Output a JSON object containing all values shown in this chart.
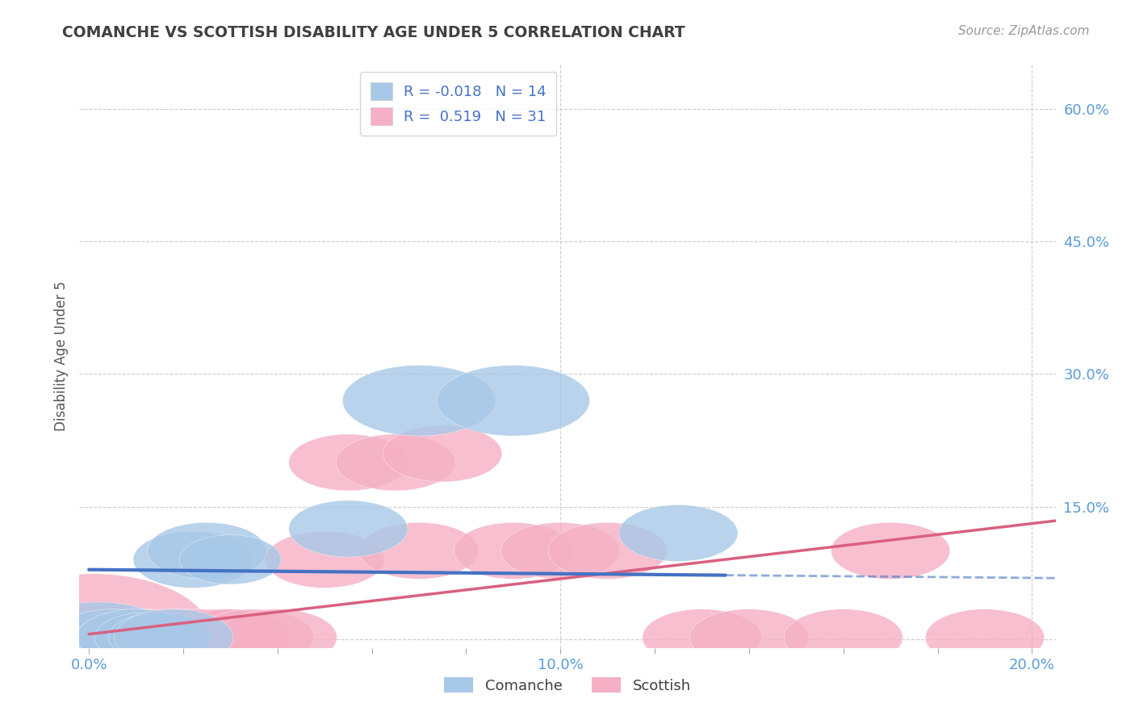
{
  "title": "COMANCHE VS SCOTTISH DISABILITY AGE UNDER 5 CORRELATION CHART",
  "source": "Source: ZipAtlas.com",
  "ylabel": "Disability Age Under 5",
  "xlim": [
    -0.002,
    0.205
  ],
  "ylim": [
    -0.01,
    0.65
  ],
  "ytick_values": [
    0.0,
    0.15,
    0.3,
    0.45,
    0.6
  ],
  "ytick_labels": [
    "",
    "15.0%",
    "30.0%",
    "45.0%",
    "60.0%"
  ],
  "xtick_values": [
    0.0,
    0.02,
    0.04,
    0.06,
    0.08,
    0.1,
    0.12,
    0.14,
    0.16,
    0.18,
    0.2
  ],
  "xtick_labels": [
    "0.0%",
    "",
    "",
    "",
    "",
    "10.0%",
    "",
    "",
    "",
    "",
    "20.0%"
  ],
  "comanche_R": -0.018,
  "comanche_N": 14,
  "scottish_R": 0.519,
  "scottish_N": 31,
  "comanche_color": "#a8c8e8",
  "scottish_color": "#f5b0c5",
  "comanche_line_color": "#4472c4",
  "scottish_line_color": "#d96080",
  "axis_color": "#5b9bd5",
  "grid_color": "#cccccc",
  "background_color": "#ffffff",
  "comanche_x": [
    0.002,
    0.005,
    0.008,
    0.01,
    0.012,
    0.015,
    0.018,
    0.022,
    0.025,
    0.03,
    0.055,
    0.07,
    0.09,
    0.125
  ],
  "comanche_y": [
    0.002,
    0.002,
    0.002,
    0.002,
    0.002,
    0.002,
    0.002,
    0.09,
    0.1,
    0.09,
    0.125,
    0.27,
    0.27,
    0.12
  ],
  "comanche_sizes_w": [
    18,
    14,
    12,
    14,
    12,
    12,
    14,
    14,
    14,
    12,
    14,
    18,
    18,
    14
  ],
  "comanche_sizes_h": [
    10,
    8,
    7,
    8,
    7,
    7,
    8,
    8,
    8,
    7,
    8,
    10,
    10,
    8
  ],
  "scottish_x": [
    0.001,
    0.003,
    0.005,
    0.006,
    0.008,
    0.009,
    0.01,
    0.012,
    0.013,
    0.015,
    0.018,
    0.02,
    0.022,
    0.025,
    0.028,
    0.03,
    0.035,
    0.04,
    0.05,
    0.055,
    0.065,
    0.07,
    0.075,
    0.09,
    0.1,
    0.11,
    0.13,
    0.14,
    0.16,
    0.17,
    0.19
  ],
  "scottish_y": [
    0.002,
    0.002,
    0.002,
    0.002,
    0.002,
    0.002,
    0.002,
    0.002,
    0.002,
    0.002,
    0.002,
    0.002,
    0.002,
    0.002,
    0.002,
    0.002,
    0.002,
    0.002,
    0.09,
    0.2,
    0.2,
    0.1,
    0.21,
    0.1,
    0.1,
    0.1,
    0.002,
    0.002,
    0.002,
    0.1,
    0.002
  ],
  "scottish_sizes_w": [
    28,
    16,
    14,
    14,
    14,
    14,
    14,
    14,
    14,
    14,
    14,
    14,
    14,
    14,
    14,
    14,
    14,
    14,
    14,
    14,
    14,
    14,
    14,
    14,
    14,
    14,
    14,
    14,
    14,
    14,
    14
  ],
  "scottish_sizes_h": [
    18,
    9,
    8,
    8,
    8,
    8,
    8,
    8,
    8,
    8,
    8,
    8,
    8,
    8,
    8,
    8,
    8,
    8,
    8,
    8,
    8,
    8,
    8,
    8,
    8,
    8,
    8,
    8,
    8,
    8,
    8
  ],
  "comanche_line_x0": 0.0,
  "comanche_line_x1": 0.135,
  "comanche_line_dash_x0": 0.135,
  "comanche_line_dash_x1": 0.205,
  "scottish_line_x0": 0.0,
  "scottish_line_x1": 0.205
}
